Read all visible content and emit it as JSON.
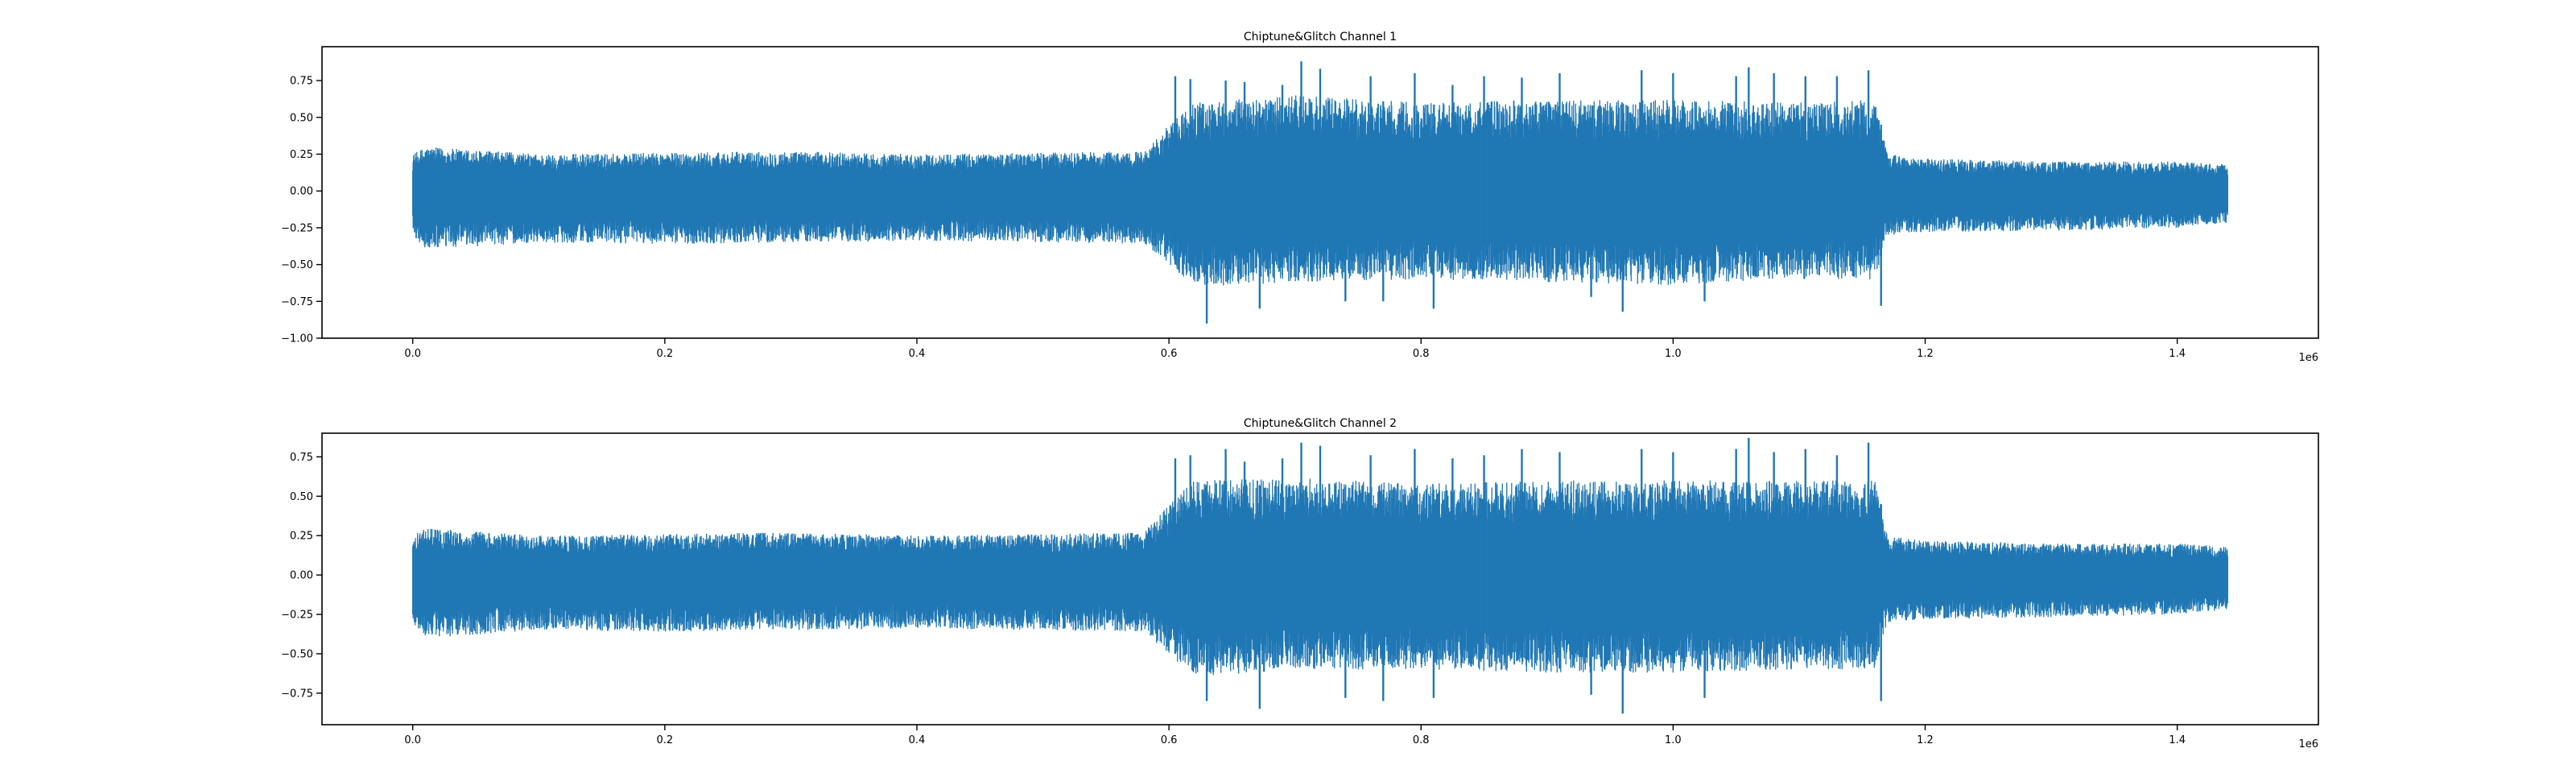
{
  "chart_data": [
    {
      "type": "line",
      "title": "Chiptune&Glitch Channel 1",
      "xlabel": "",
      "ylabel": "",
      "x_offset_label": "1e6",
      "xlim": [
        -0.072,
        1.512
      ],
      "ylim": [
        -1.0,
        0.98
      ],
      "x_ticks": [
        0.0,
        0.2,
        0.4,
        0.6,
        0.8,
        1.0,
        1.2,
        1.4
      ],
      "x_tick_labels": [
        "0.0",
        "0.2",
        "0.4",
        "0.6",
        "0.8",
        "1.0",
        "1.2",
        "1.4"
      ],
      "y_ticks": [
        -1.0,
        -0.75,
        -0.5,
        -0.25,
        0.0,
        0.25,
        0.5,
        0.75
      ],
      "y_tick_labels": [
        "−1.00",
        "−0.75",
        "−0.50",
        "−0.25",
        "0.00",
        "0.25",
        "0.50",
        "0.75"
      ],
      "color": "#1f77b4",
      "grid": false,
      "series": [
        {
          "name": "Channel 1",
          "x_range": [
            0.0,
            1.44
          ],
          "envelope_x": [
            0.0,
            0.01,
            0.1,
            0.2,
            0.3,
            0.4,
            0.5,
            0.58,
            0.6,
            0.62,
            0.7,
            0.8,
            0.9,
            1.0,
            1.1,
            1.16,
            1.17,
            1.2,
            1.3,
            1.4,
            1.44
          ],
          "envelope_upper": [
            0.25,
            0.3,
            0.25,
            0.26,
            0.27,
            0.25,
            0.26,
            0.27,
            0.45,
            0.6,
            0.65,
            0.6,
            0.62,
            0.62,
            0.6,
            0.62,
            0.25,
            0.22,
            0.2,
            0.2,
            0.18
          ],
          "envelope_lower": [
            -0.3,
            -0.4,
            -0.35,
            -0.36,
            -0.35,
            -0.34,
            -0.35,
            -0.36,
            -0.5,
            -0.65,
            -0.62,
            -0.6,
            -0.62,
            -0.64,
            -0.6,
            -0.6,
            -0.3,
            -0.28,
            -0.27,
            -0.25,
            -0.22
          ],
          "spikes": [
            {
              "x": 0.605,
              "y": 0.78
            },
            {
              "x": 0.617,
              "y": 0.76
            },
            {
              "x": 0.63,
              "y": -0.9
            },
            {
              "x": 0.645,
              "y": 0.75
            },
            {
              "x": 0.66,
              "y": 0.74
            },
            {
              "x": 0.672,
              "y": -0.8
            },
            {
              "x": 0.69,
              "y": 0.72
            },
            {
              "x": 0.705,
              "y": 0.88
            },
            {
              "x": 0.72,
              "y": 0.83
            },
            {
              "x": 0.74,
              "y": -0.75
            },
            {
              "x": 0.76,
              "y": 0.78
            },
            {
              "x": 0.77,
              "y": -0.75
            },
            {
              "x": 0.795,
              "y": 0.8
            },
            {
              "x": 0.81,
              "y": -0.8
            },
            {
              "x": 0.825,
              "y": 0.72
            },
            {
              "x": 0.85,
              "y": 0.78
            },
            {
              "x": 0.88,
              "y": 0.77
            },
            {
              "x": 0.91,
              "y": 0.8
            },
            {
              "x": 0.935,
              "y": -0.72
            },
            {
              "x": 0.96,
              "y": -0.82
            },
            {
              "x": 0.975,
              "y": 0.82
            },
            {
              "x": 1.0,
              "y": 0.8
            },
            {
              "x": 1.025,
              "y": -0.75
            },
            {
              "x": 1.05,
              "y": 0.78
            },
            {
              "x": 1.06,
              "y": 0.84
            },
            {
              "x": 1.08,
              "y": 0.8
            },
            {
              "x": 1.105,
              "y": 0.78
            },
            {
              "x": 1.13,
              "y": 0.78
            },
            {
              "x": 1.155,
              "y": 0.82
            },
            {
              "x": 1.165,
              "y": -0.78
            }
          ]
        }
      ]
    },
    {
      "type": "line",
      "title": "Chiptune&Glitch Channel 2",
      "xlabel": "",
      "ylabel": "",
      "x_offset_label": "1e6",
      "xlim": [
        -0.072,
        1.512
      ],
      "ylim": [
        -0.95,
        0.9
      ],
      "x_ticks": [
        0.0,
        0.2,
        0.4,
        0.6,
        0.8,
        1.0,
        1.2,
        1.4
      ],
      "x_tick_labels": [
        "0.0",
        "0.2",
        "0.4",
        "0.6",
        "0.8",
        "1.0",
        "1.2",
        "1.4"
      ],
      "y_ticks": [
        -0.75,
        -0.5,
        -0.25,
        0.0,
        0.25,
        0.5,
        0.75
      ],
      "y_tick_labels": [
        "−0.75",
        "−0.50",
        "−0.25",
        "0.00",
        "0.25",
        "0.50",
        "0.75"
      ],
      "color": "#1f77b4",
      "grid": false,
      "series": [
        {
          "name": "Channel 2",
          "x_range": [
            0.0,
            1.44
          ],
          "envelope_x": [
            0.0,
            0.01,
            0.1,
            0.2,
            0.3,
            0.4,
            0.5,
            0.58,
            0.6,
            0.62,
            0.7,
            0.8,
            0.9,
            1.0,
            1.1,
            1.16,
            1.17,
            1.2,
            1.3,
            1.4,
            1.44
          ],
          "envelope_upper": [
            0.25,
            0.3,
            0.25,
            0.26,
            0.27,
            0.25,
            0.26,
            0.27,
            0.45,
            0.6,
            0.62,
            0.58,
            0.6,
            0.6,
            0.6,
            0.6,
            0.25,
            0.22,
            0.2,
            0.2,
            0.18
          ],
          "envelope_lower": [
            -0.3,
            -0.4,
            -0.35,
            -0.36,
            -0.35,
            -0.34,
            -0.35,
            -0.36,
            -0.5,
            -0.65,
            -0.6,
            -0.6,
            -0.62,
            -0.62,
            -0.6,
            -0.6,
            -0.3,
            -0.28,
            -0.27,
            -0.25,
            -0.22
          ],
          "spikes": [
            {
              "x": 0.605,
              "y": 0.74
            },
            {
              "x": 0.617,
              "y": 0.76
            },
            {
              "x": 0.63,
              "y": -0.8
            },
            {
              "x": 0.645,
              "y": 0.8
            },
            {
              "x": 0.66,
              "y": 0.72
            },
            {
              "x": 0.672,
              "y": -0.85
            },
            {
              "x": 0.69,
              "y": 0.74
            },
            {
              "x": 0.705,
              "y": 0.84
            },
            {
              "x": 0.72,
              "y": 0.82
            },
            {
              "x": 0.74,
              "y": -0.78
            },
            {
              "x": 0.76,
              "y": 0.76
            },
            {
              "x": 0.77,
              "y": -0.8
            },
            {
              "x": 0.795,
              "y": 0.8
            },
            {
              "x": 0.81,
              "y": -0.78
            },
            {
              "x": 0.825,
              "y": 0.74
            },
            {
              "x": 0.85,
              "y": 0.76
            },
            {
              "x": 0.88,
              "y": 0.8
            },
            {
              "x": 0.91,
              "y": 0.78
            },
            {
              "x": 0.935,
              "y": -0.76
            },
            {
              "x": 0.96,
              "y": -0.88
            },
            {
              "x": 0.975,
              "y": 0.8
            },
            {
              "x": 1.0,
              "y": 0.78
            },
            {
              "x": 1.025,
              "y": -0.78
            },
            {
              "x": 1.05,
              "y": 0.8
            },
            {
              "x": 1.06,
              "y": 0.87
            },
            {
              "x": 1.08,
              "y": 0.78
            },
            {
              "x": 1.105,
              "y": 0.8
            },
            {
              "x": 1.13,
              "y": 0.76
            },
            {
              "x": 1.155,
              "y": 0.84
            },
            {
              "x": 1.165,
              "y": -0.8
            }
          ]
        }
      ]
    }
  ]
}
